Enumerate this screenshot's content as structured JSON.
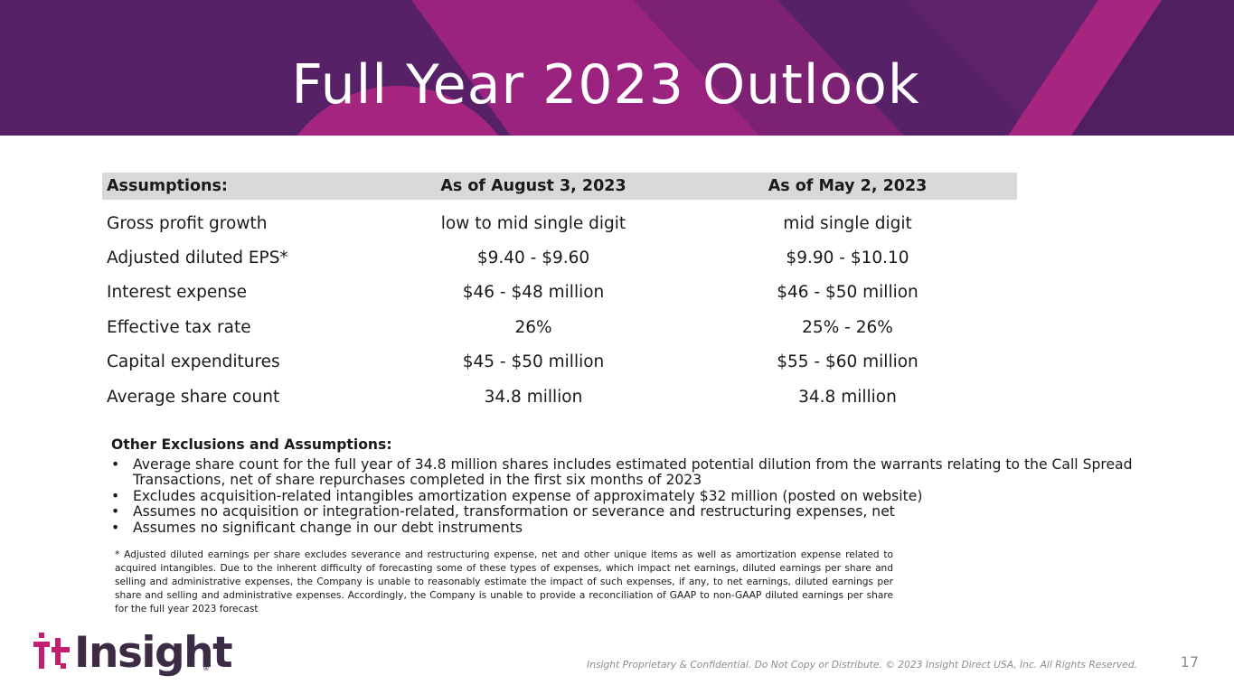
{
  "header": {
    "title": "Full Year 2023 Outlook"
  },
  "colors": {
    "banner_dark": "#572168",
    "banner_magenta": "#9b2380",
    "banner_pink": "#a6267f",
    "table_header_bg": "#d9d9d9",
    "logo_accent": "#c31f6e"
  },
  "table": {
    "headers": [
      "Assumptions:",
      "As of August 3, 2023",
      "As of May 2, 2023"
    ],
    "rows": [
      [
        "Gross profit growth",
        "low to mid single digit",
        "mid single digit"
      ],
      [
        "Adjusted diluted EPS*",
        "$9.40 - $9.60",
        "$9.90 - $10.10"
      ],
      [
        "Interest expense",
        "$46 - $48 million",
        "$46 - $50 million"
      ],
      [
        "Effective tax rate",
        "26%",
        "25% - 26%"
      ],
      [
        "Capital expenditures",
        "$45 - $50 million",
        "$55 - $60 million"
      ],
      [
        "Average share count",
        "34.8 million",
        "34.8 million"
      ]
    ]
  },
  "notes": {
    "title": "Other Exclusions and Assumptions:",
    "bullet": "•",
    "items": [
      "Average share count for the full year of 34.8 million shares includes estimated potential dilution from the warrants relating to the Call Spread Transactions, net of share repurchases completed in the first six months of 2023",
      "Excludes acquisition-related intangibles amortization expense of approximately $32 million (posted on website)",
      "Assumes no acquisition or integration-related, transformation or severance and restructuring expenses, net",
      "Assumes no significant change in our debt instruments"
    ]
  },
  "footnote": "* Adjusted diluted earnings per share excludes severance and restructuring expense, net and other unique items as well as amortization expense related to acquired intangibles. Due to the inherent difficulty of forecasting some of these types of expenses, which impact net earnings, diluted earnings per share and selling and administrative expenses, the Company is unable to reasonably estimate the impact of such expenses, if any, to net earnings, diluted earnings per share and selling and administrative expenses. Accordingly, the Company is unable to provide a reconciliation of GAAP to non-GAAP diluted earnings per share for the full year 2023 forecast",
  "footer": {
    "logo_text": "Insight",
    "logo_reg": "®",
    "legal": "Insight Proprietary & Confidential. Do Not Copy or Distribute. © 2023 Insight Direct USA, Inc. All Rights Reserved.",
    "page_number": "17"
  }
}
